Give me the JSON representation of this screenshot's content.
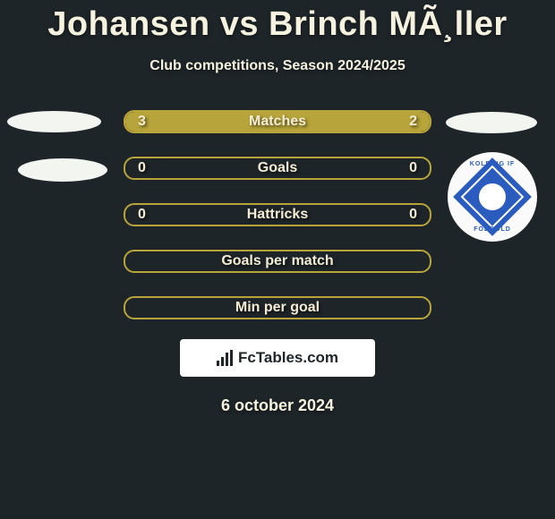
{
  "title": "Johansen vs Brinch MÃ¸ller",
  "subtitle": "Club competitions, Season 2024/2025",
  "date": "6 october 2024",
  "logo_text": "FcTables.com",
  "club_badge": {
    "top_text": "KOLDING IF",
    "bottom_text": "FODBOLD"
  },
  "colors": {
    "background": "#1e2529",
    "accent": "#b7a43a",
    "text": "#f5f2df"
  },
  "bars": [
    {
      "label": "Matches",
      "left": "3",
      "right": "2",
      "fill_left_pct": 60,
      "fill_right_pct": 40
    },
    {
      "label": "Goals",
      "left": "0",
      "right": "0",
      "fill_left_pct": 0,
      "fill_right_pct": 0
    },
    {
      "label": "Hattricks",
      "left": "0",
      "right": "0",
      "fill_left_pct": 0,
      "fill_right_pct": 0
    },
    {
      "label": "Goals per match",
      "left": "",
      "right": "",
      "fill_left_pct": 0,
      "fill_right_pct": 0
    },
    {
      "label": "Min per goal",
      "left": "",
      "right": "",
      "fill_left_pct": 0,
      "fill_right_pct": 0
    }
  ]
}
